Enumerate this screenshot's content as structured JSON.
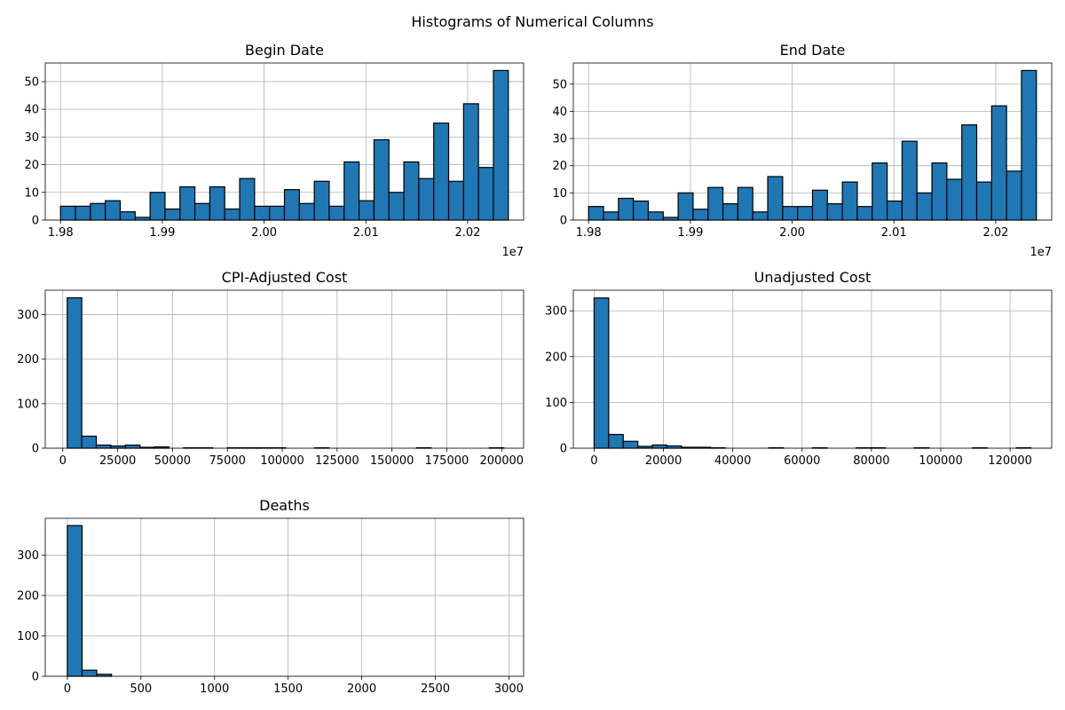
{
  "figure": {
    "suptitle": "Histograms of Numerical Columns"
  },
  "chart_data": [
    {
      "type": "bar",
      "title": "Begin Date",
      "xlabel": "",
      "ylabel": "",
      "x_offset_label": "1e7",
      "bins": 30,
      "bin_range": [
        19800000,
        20240000
      ],
      "counts": [
        5,
        5,
        6,
        7,
        3,
        1,
        10,
        4,
        12,
        6,
        12,
        4,
        15,
        5,
        5,
        11,
        6,
        14,
        5,
        21,
        7,
        29,
        10,
        21,
        15,
        35,
        14,
        42,
        19,
        54
      ],
      "xlim": [
        19785000,
        20255000
      ],
      "ylim": [
        0,
        56.7
      ],
      "xticks": [
        19800000,
        19900000,
        20000000,
        20100000,
        20200000
      ],
      "xtick_labels": [
        "1.98",
        "1.99",
        "2.00",
        "2.01",
        "2.02"
      ],
      "yticks": [
        0,
        10,
        20,
        30,
        40,
        50
      ],
      "ytick_labels": [
        "0",
        "10",
        "20",
        "30",
        "40",
        "50"
      ],
      "grid": true
    },
    {
      "type": "bar",
      "title": "End Date",
      "xlabel": "",
      "ylabel": "",
      "x_offset_label": "1e7",
      "bins": 30,
      "bin_range": [
        19800000,
        20240000
      ],
      "counts": [
        5,
        3,
        8,
        7,
        3,
        1,
        10,
        4,
        12,
        6,
        12,
        3,
        16,
        5,
        5,
        11,
        6,
        14,
        5,
        21,
        7,
        29,
        10,
        21,
        15,
        35,
        14,
        42,
        18,
        55
      ],
      "xlim": [
        19785000,
        20255000
      ],
      "ylim": [
        0,
        57.75
      ],
      "xticks": [
        19800000,
        19900000,
        20000000,
        20100000,
        20200000
      ],
      "xtick_labels": [
        "1.98",
        "1.99",
        "2.00",
        "2.01",
        "2.02"
      ],
      "yticks": [
        0,
        10,
        20,
        30,
        40,
        50
      ],
      "ytick_labels": [
        "0",
        "10",
        "20",
        "30",
        "40",
        "50"
      ],
      "grid": true
    },
    {
      "type": "bar",
      "title": "CPI-Adjusted Cost",
      "xlabel": "",
      "ylabel": "",
      "x_offset_label": "",
      "bins": 30,
      "bin_range": [
        2000,
        201000
      ],
      "counts": [
        338,
        27,
        7,
        5,
        7,
        2,
        3,
        0,
        1,
        1,
        0,
        1,
        1,
        1,
        1,
        0,
        0,
        1,
        0,
        0,
        0,
        0,
        0,
        0,
        1,
        0,
        0,
        0,
        0,
        1
      ],
      "xlim": [
        -8000,
        210000
      ],
      "ylim": [
        0,
        355
      ],
      "xticks": [
        0,
        25000,
        50000,
        75000,
        100000,
        125000,
        150000,
        175000,
        200000
      ],
      "xtick_labels": [
        "0",
        "25000",
        "50000",
        "75000",
        "100000",
        "125000",
        "150000",
        "175000",
        "200000"
      ],
      "yticks": [
        0,
        100,
        200,
        300
      ],
      "ytick_labels": [
        "0",
        "100",
        "200",
        "300"
      ],
      "grid": true
    },
    {
      "type": "bar",
      "title": "Unadjusted Cost",
      "xlabel": "",
      "ylabel": "",
      "x_offset_label": "",
      "bins": 30,
      "bin_range": [
        0,
        126000
      ],
      "counts": [
        328,
        30,
        15,
        4,
        7,
        5,
        2,
        2,
        1,
        0,
        0,
        0,
        1,
        0,
        0,
        1,
        0,
        0,
        1,
        1,
        0,
        0,
        1,
        0,
        0,
        0,
        1,
        0,
        0,
        1
      ],
      "xlim": [
        -6000,
        132000
      ],
      "ylim": [
        0,
        345
      ],
      "xticks": [
        0,
        20000,
        40000,
        60000,
        80000,
        100000,
        120000
      ],
      "xtick_labels": [
        "0",
        "20000",
        "40000",
        "60000",
        "80000",
        "100000",
        "120000"
      ],
      "yticks": [
        0,
        100,
        200,
        300
      ],
      "ytick_labels": [
        "0",
        "100",
        "200",
        "300"
      ],
      "grid": true
    },
    {
      "type": "bar",
      "title": "Deaths",
      "xlabel": "",
      "ylabel": "",
      "x_offset_label": "",
      "bins": 30,
      "bin_range": [
        0,
        3000
      ],
      "counts": [
        373,
        15,
        5,
        0,
        0,
        0,
        0,
        0,
        0,
        0,
        0,
        0,
        0,
        0,
        0,
        0,
        0,
        0,
        0,
        0,
        0,
        0,
        0,
        0,
        0,
        0,
        0,
        0,
        0,
        0
      ],
      "xlim": [
        -150,
        3100
      ],
      "ylim": [
        0,
        391
      ],
      "xticks": [
        0,
        500,
        1000,
        1500,
        2000,
        2500,
        3000
      ],
      "xtick_labels": [
        "0",
        "500",
        "1000",
        "1500",
        "2000",
        "2500",
        "3000"
      ],
      "yticks": [
        0,
        100,
        200,
        300
      ],
      "ytick_labels": [
        "0",
        "100",
        "200",
        "300"
      ],
      "grid": true
    }
  ]
}
